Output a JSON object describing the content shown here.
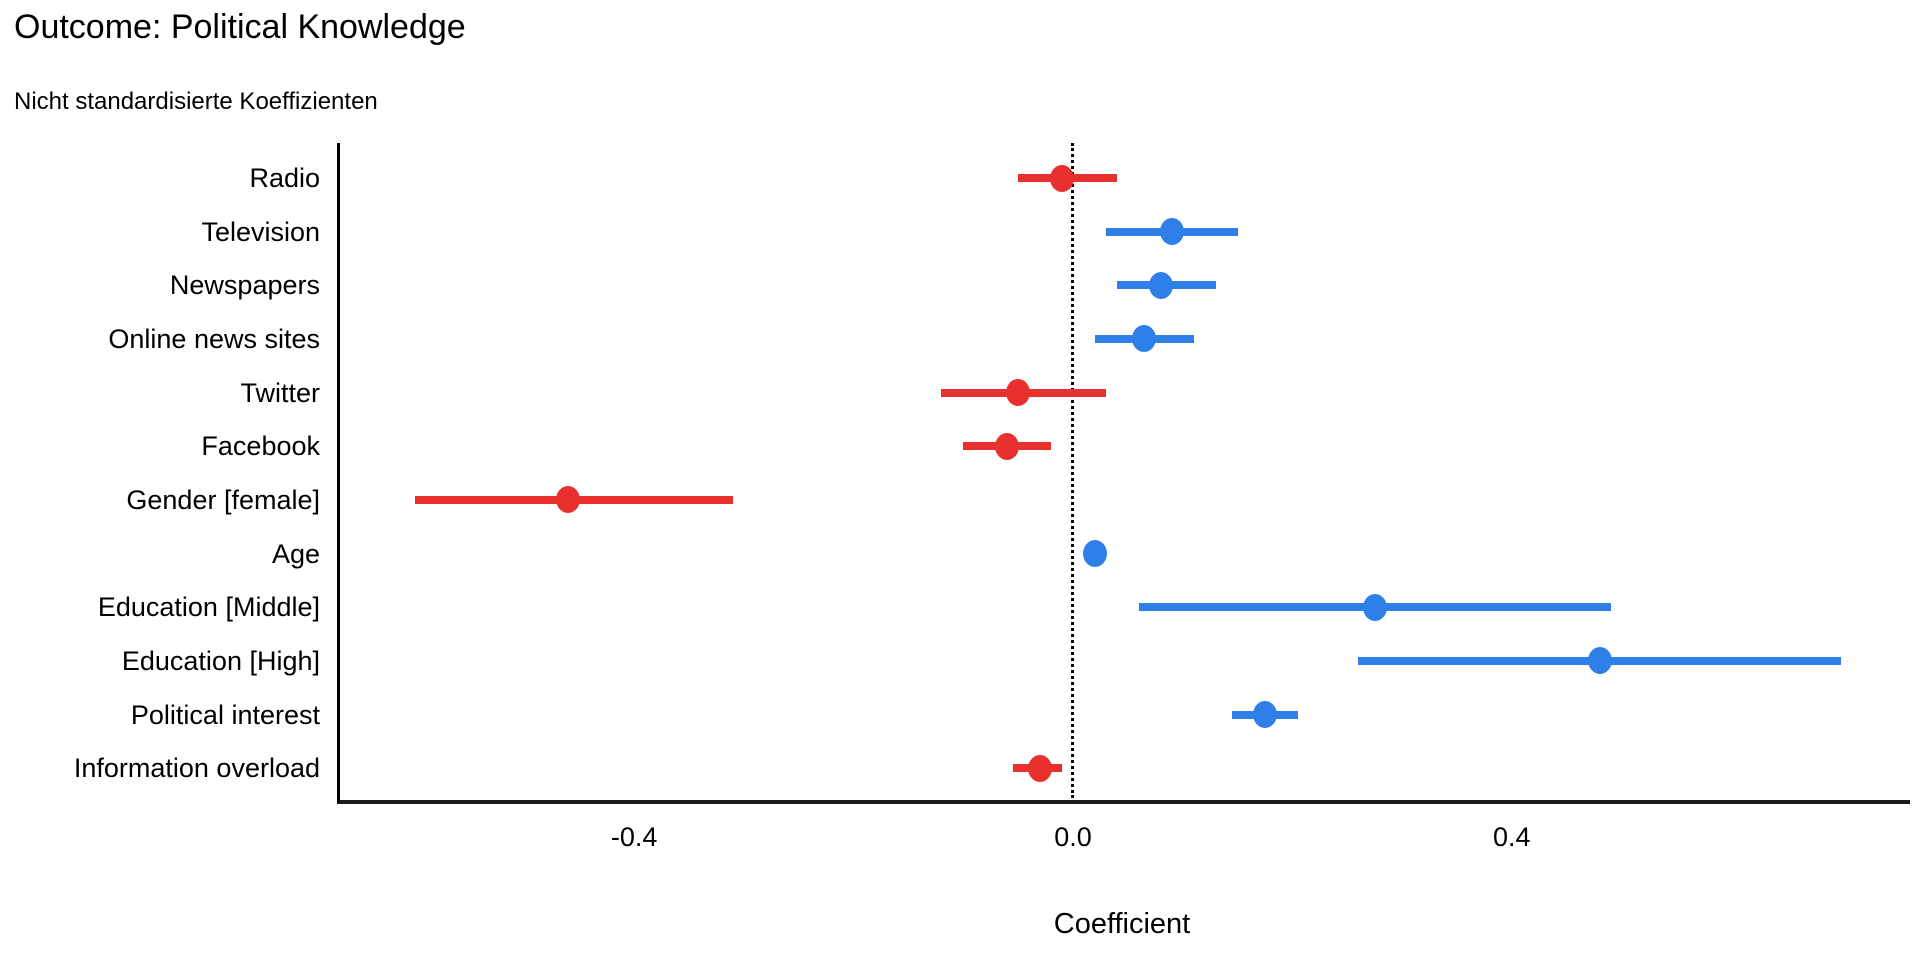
{
  "chart_data": {
    "type": "scatter",
    "variant": "coefficient-dot-whisker-plot",
    "title": "Outcome: Political Knowledge",
    "subtitle": "Nicht standardisierte Koeffizienten",
    "xlabel": "Coefficient",
    "ylabel": "",
    "xlim": [
      -0.67,
      0.76
    ],
    "grid": false,
    "legend": false,
    "zero_reference_line": {
      "value": 0.0,
      "style": "dotted"
    },
    "x_ticks": [
      {
        "value": -0.4,
        "label": "-0.4"
      },
      {
        "value": 0.0,
        "label": "0.0"
      },
      {
        "value": 0.4,
        "label": "0.4"
      }
    ],
    "palette": {
      "positive": "#2e7fe8",
      "negative": "#e8312e"
    },
    "terms": [
      {
        "label": "Radio",
        "estimate": -0.01,
        "ci_low": -0.05,
        "ci_high": 0.04
      },
      {
        "label": "Television",
        "estimate": 0.09,
        "ci_low": 0.03,
        "ci_high": 0.15
      },
      {
        "label": "Newspapers",
        "estimate": 0.08,
        "ci_low": 0.04,
        "ci_high": 0.13
      },
      {
        "label": "Online news sites",
        "estimate": 0.065,
        "ci_low": 0.02,
        "ci_high": 0.11
      },
      {
        "label": "Twitter",
        "estimate": -0.05,
        "ci_low": -0.12,
        "ci_high": 0.03
      },
      {
        "label": "Facebook",
        "estimate": -0.06,
        "ci_low": -0.1,
        "ci_high": -0.02
      },
      {
        "label": "Gender [female]",
        "estimate": -0.46,
        "ci_low": -0.6,
        "ci_high": -0.31
      },
      {
        "label": "Age",
        "estimate": 0.02,
        "ci_low": 0.01,
        "ci_high": 0.03
      },
      {
        "label": "Education [Middle]",
        "estimate": 0.275,
        "ci_low": 0.06,
        "ci_high": 0.49
      },
      {
        "label": "Education [High]",
        "estimate": 0.48,
        "ci_low": 0.26,
        "ci_high": 0.7
      },
      {
        "label": "Political interest",
        "estimate": 0.175,
        "ci_low": 0.145,
        "ci_high": 0.205
      },
      {
        "label": "Information overload",
        "estimate": -0.03,
        "ci_low": -0.055,
        "ci_high": -0.01
      }
    ]
  }
}
